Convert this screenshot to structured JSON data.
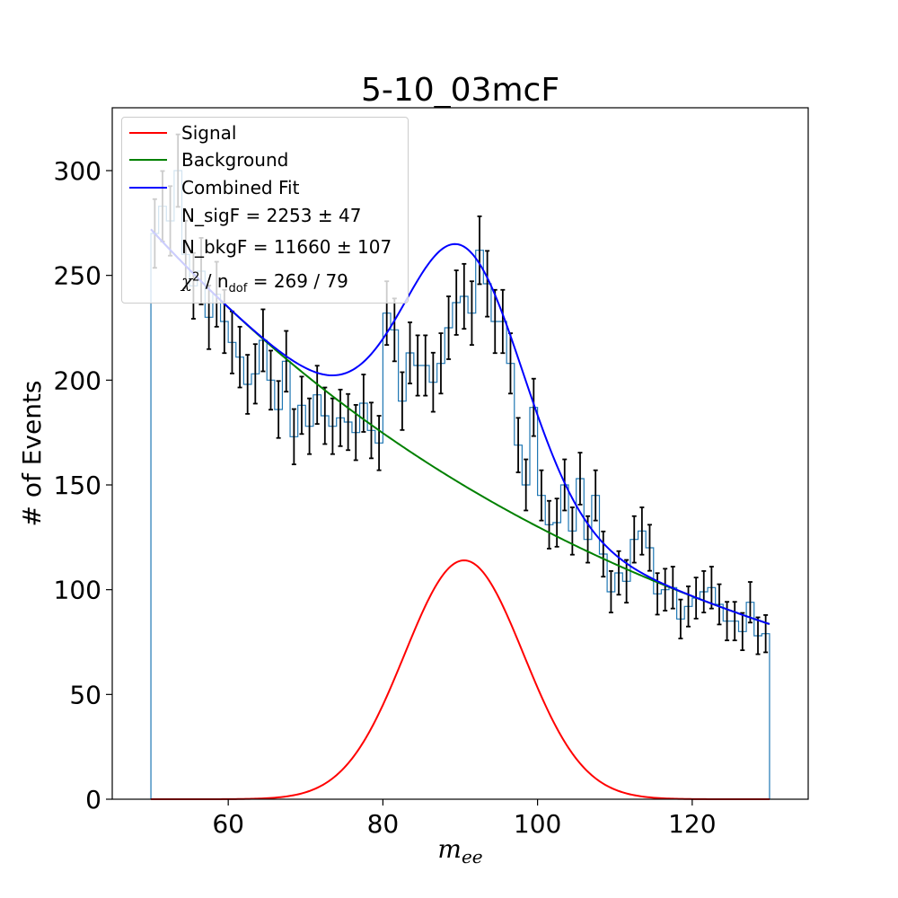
{
  "chart_data": {
    "type": "histogram_fit",
    "title": "5-10_03mcF",
    "xlabel": "m_ee",
    "ylabel": "# of Events",
    "xlim": [
      45,
      135
    ],
    "ylim": [
      0,
      330
    ],
    "x_ticks": [
      60,
      80,
      100,
      120
    ],
    "y_ticks": [
      0,
      50,
      100,
      150,
      200,
      250,
      300
    ],
    "legend_position": "top-left",
    "grid": false,
    "colors": {
      "signal": "#ff0000",
      "background": "#008000",
      "combined": "#0000ff",
      "histogram": "#1f77b4",
      "errorbars": "#000000"
    },
    "legend": {
      "signal_label": "Signal",
      "background_label": "Background",
      "combined_label": "Combined Fit",
      "nsig_text": "N_sigF = 2253 ± 47",
      "nbkg_text": "N_bkgF = 11660 ± 107",
      "chi2_prefix": "χ",
      "chi2_sup": "2",
      "chi2_mid": " / n",
      "chi2_sub": "dof",
      "chi2_value": " = 269 / 79"
    },
    "histogram": {
      "bin_edges_start": 50,
      "bin_width": 1,
      "counts": [
        270,
        283,
        276,
        300,
        260,
        245,
        252,
        230,
        241,
        228,
        218,
        211,
        198,
        203,
        219,
        200,
        186,
        209,
        173,
        188,
        178,
        193,
        183,
        178,
        182,
        180,
        175,
        189,
        176,
        170,
        232,
        224,
        190,
        213,
        207,
        207,
        199,
        208,
        225,
        237,
        240,
        232,
        262,
        246,
        228,
        228,
        208,
        169,
        150,
        187,
        145,
        131,
        132,
        150,
        128,
        153,
        124,
        145,
        117,
        99,
        108,
        104,
        124,
        128,
        120,
        98,
        100,
        101,
        86,
        92,
        96,
        99,
        101,
        93,
        85,
        85,
        80,
        94,
        78,
        79
      ],
      "errors": [
        16.4,
        16.8,
        16.6,
        17.3,
        16.1,
        15.7,
        15.9,
        15.2,
        15.5,
        15.1,
        14.8,
        14.5,
        14.1,
        14.2,
        14.8,
        14.1,
        13.6,
        14.5,
        13.2,
        13.7,
        13.3,
        13.9,
        13.5,
        13.3,
        13.5,
        13.4,
        13.2,
        13.7,
        13.3,
        13.0,
        15.2,
        15.0,
        13.8,
        14.6,
        14.4,
        14.4,
        14.1,
        14.4,
        15.0,
        15.4,
        15.5,
        15.2,
        16.2,
        15.7,
        15.1,
        15.1,
        14.4,
        13.0,
        12.2,
        13.7,
        12.0,
        11.4,
        11.5,
        12.2,
        11.3,
        12.4,
        11.1,
        12.0,
        10.8,
        9.9,
        10.4,
        10.2,
        11.1,
        11.3,
        11.0,
        9.9,
        10.0,
        10.0,
        9.3,
        9.6,
        9.8,
        9.9,
        10.0,
        9.6,
        9.2,
        9.2,
        8.9,
        9.7,
        8.8,
        8.9
      ]
    },
    "signal_curve": {
      "mean": 90.5,
      "sigma": 7.7,
      "amplitude": 114
    },
    "background_curve": {
      "a": 272,
      "slope": -0.01475,
      "x0": 50
    }
  }
}
